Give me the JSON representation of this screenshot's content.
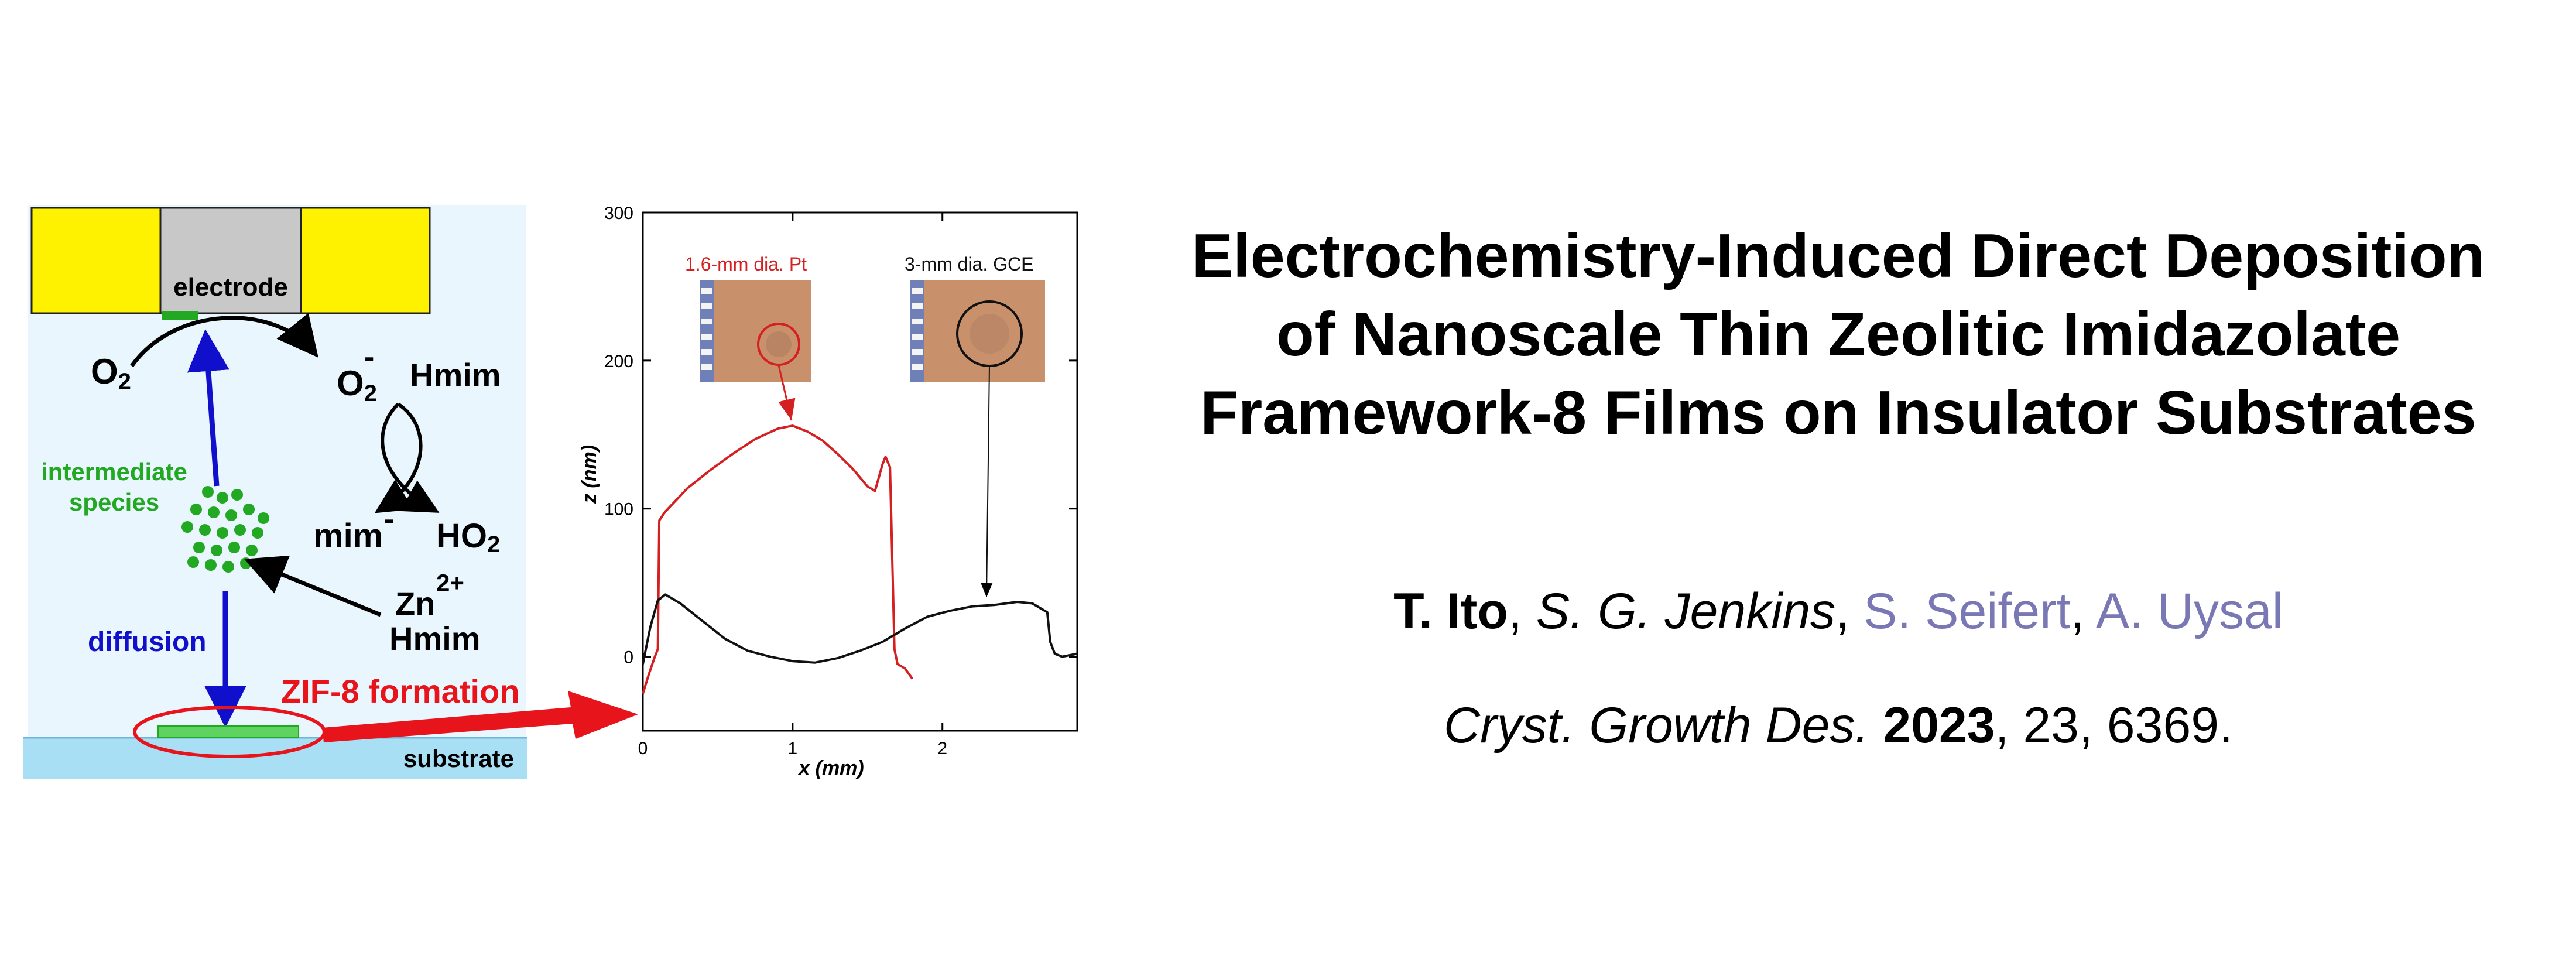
{
  "scheme": {
    "electrode_label": "electrode",
    "o2_label": "O",
    "o2_sub": "2",
    "superoxide_label": "O",
    "superoxide_sub": "2",
    "superoxide_sup": "-",
    "hmim_label_top": "Hmim",
    "intermediate_label_1": "intermediate",
    "intermediate_label_2": "species",
    "mim_label": "mim",
    "mim_sup": "-",
    "ho2_label": "HO",
    "ho2_sub": "2",
    "zn_label": "Zn",
    "zn_sup": "2+",
    "hmim_label_bottom": "Hmim",
    "diffusion_label": "diffusion",
    "zif_label": "ZIF-8 formation",
    "substrate_label": "substrate",
    "colors": {
      "electrode_side": "#fff200",
      "electrode_center": "#c8c8c8",
      "background": "#eaf6fd",
      "substrate": "#a8dff5",
      "green": "#22a822",
      "blue_arrow": "#1010cc",
      "red": "#e8141c"
    }
  },
  "chart_data": {
    "type": "line",
    "xlabel": "x (mm)",
    "ylabel": "z (nm)",
    "xlim": [
      0,
      2.9
    ],
    "ylim": [
      -50,
      300
    ],
    "xticks": [
      "0",
      "1",
      "2"
    ],
    "yticks": [
      "300",
      "200",
      "100",
      "0"
    ],
    "series": [
      {
        "color": "#d42020",
        "x": [
          0.0,
          0.04,
          0.08,
          0.1,
          0.11,
          0.15,
          0.3,
          0.45,
          0.6,
          0.75,
          0.9,
          1.0,
          1.1,
          1.2,
          1.3,
          1.4,
          1.5,
          1.55,
          1.6,
          1.62,
          1.65,
          1.68,
          1.7,
          1.75,
          1.8
        ],
        "y": [
          -25,
          -12,
          0,
          5,
          92,
          98,
          114,
          126,
          137,
          147,
          154,
          156,
          152,
          146,
          137,
          127,
          115,
          112,
          130,
          135,
          128,
          5,
          -5,
          -8,
          -15
        ]
      },
      {
        "color": "#111111",
        "x": [
          0.0,
          0.02,
          0.05,
          0.1,
          0.15,
          0.25,
          0.4,
          0.55,
          0.7,
          0.85,
          1.0,
          1.15,
          1.3,
          1.45,
          1.6,
          1.75,
          1.9,
          2.05,
          2.2,
          2.35,
          2.5,
          2.6,
          2.7,
          2.72,
          2.75,
          2.8,
          2.9
        ],
        "y": [
          -5,
          5,
          20,
          38,
          42,
          36,
          24,
          12,
          4,
          0,
          -3,
          -4,
          -1,
          4,
          10,
          19,
          27,
          31,
          34,
          35,
          37,
          36,
          30,
          10,
          2,
          0,
          2
        ]
      }
    ],
    "annotations": [
      {
        "text": "1.6-mm dia. Pt",
        "color": "#d42020"
      },
      {
        "text": "3-mm dia. GCE",
        "color": "#111111"
      }
    ]
  },
  "title": {
    "line1": "Electrochemistry-Induced Direct Deposition",
    "line2": "of Nanoscale Thin Zeolitic Imidazolate",
    "line3": "Framework-8 Films on Insulator Substrates"
  },
  "authors": {
    "a1": "T. Ito",
    "a2": "S. G. Jenkins",
    "a3": "S. Seifert",
    "a4": "A. Uysal",
    "sep": ", "
  },
  "citation": {
    "journal": "Cryst. Growth Des.",
    "year": "2023",
    "rest": ", 23, 6369."
  }
}
